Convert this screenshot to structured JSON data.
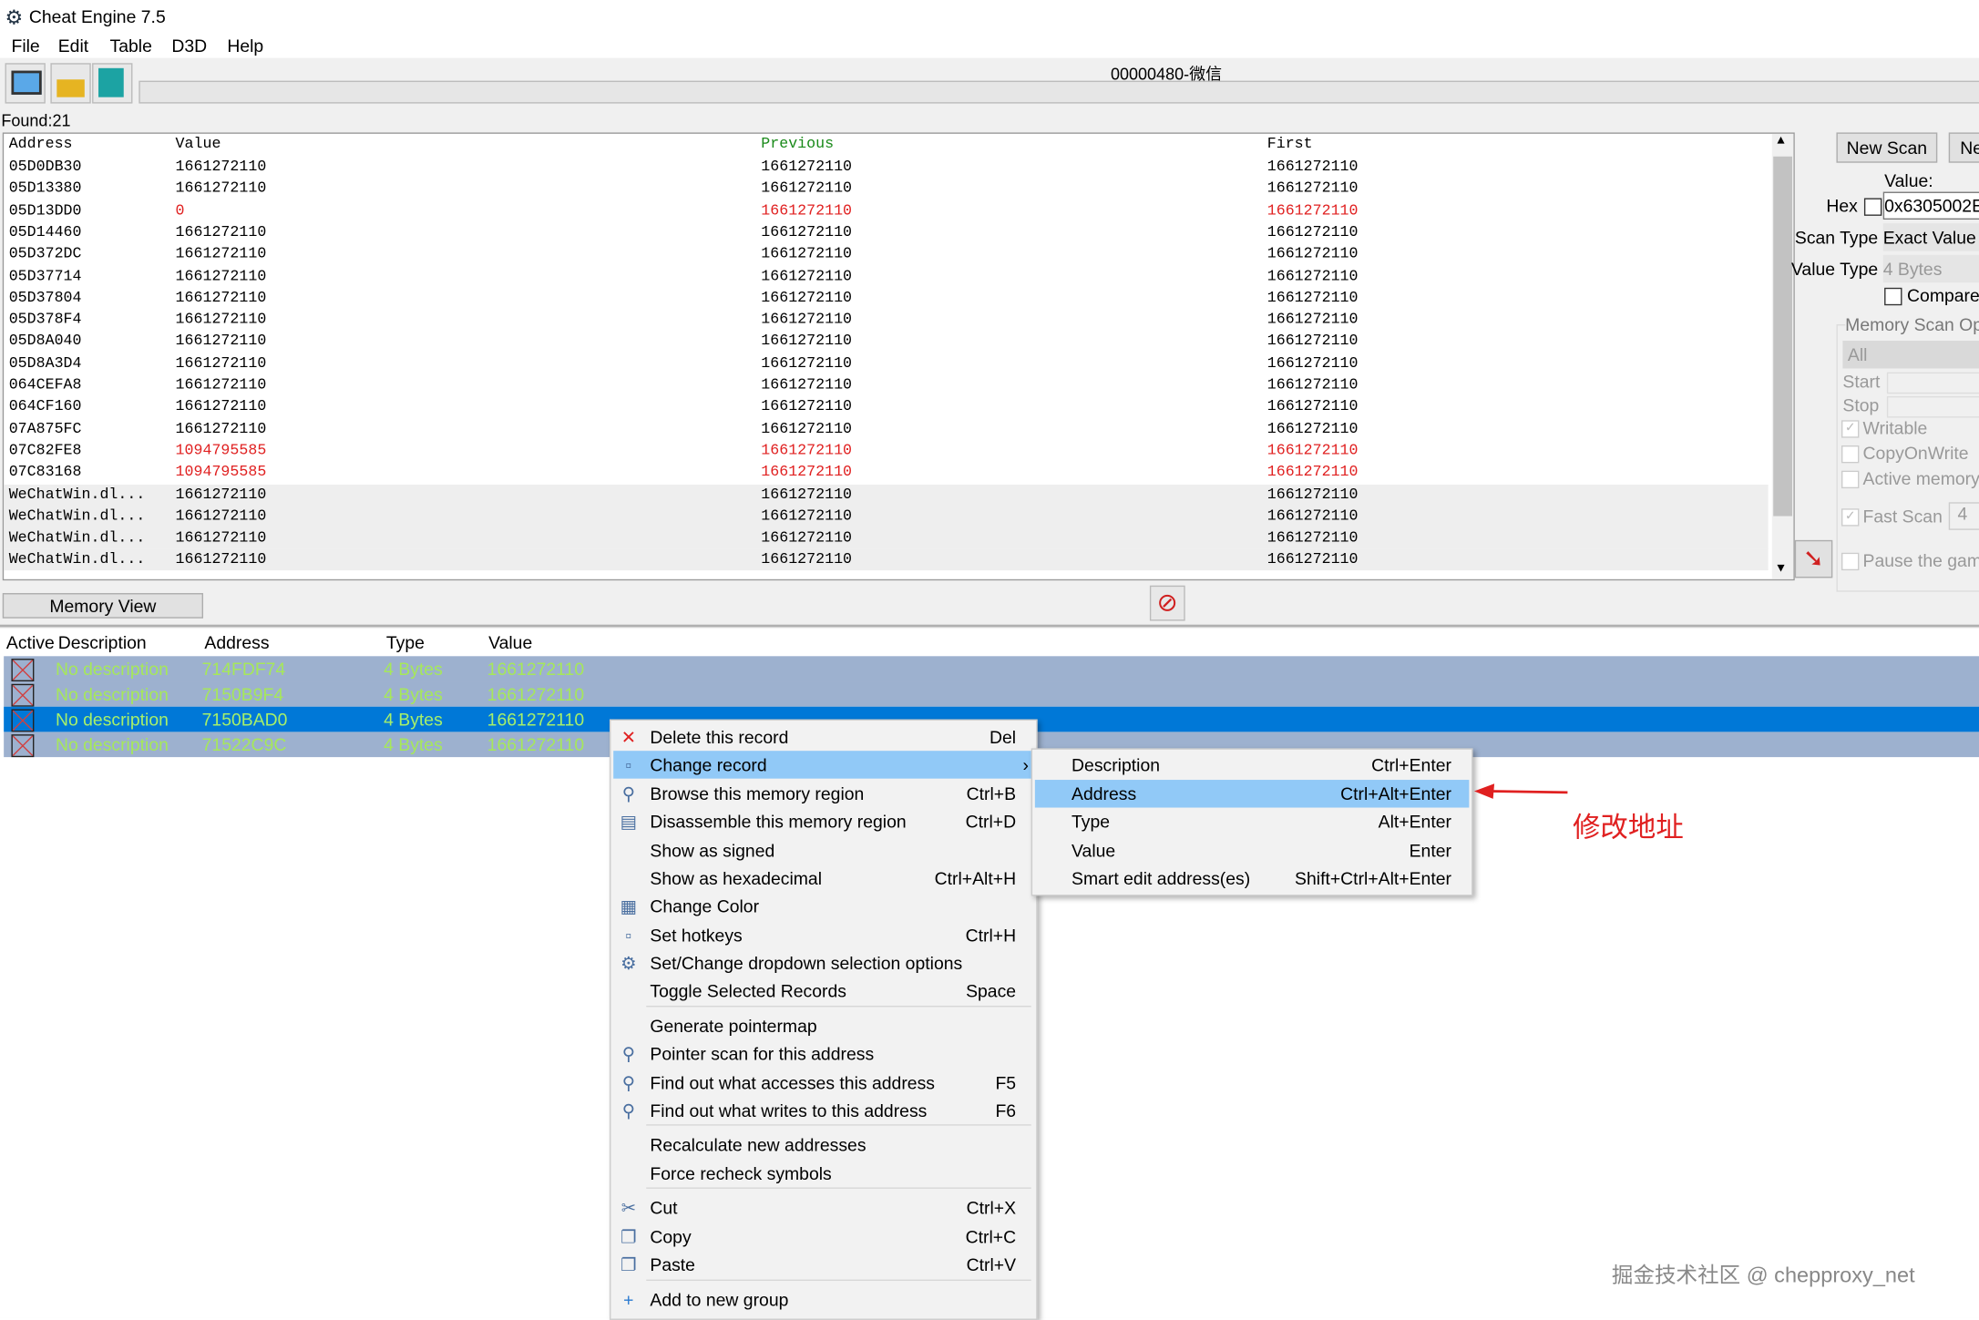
{
  "app": {
    "title": "Cheat Engine 7.5",
    "process": "00000480-微信"
  },
  "menubar": [
    "File",
    "Edit",
    "Table",
    "D3D",
    "Help"
  ],
  "toolbar": {
    "icons": [
      "open-process-icon",
      "open-file-icon",
      "save-icon"
    ]
  },
  "found": "Found:21",
  "results": {
    "headers": [
      "Address",
      "Value",
      "Previous",
      "First"
    ],
    "rows": [
      [
        "05D0DB30",
        "1661272110",
        "1661272110",
        "1661272110",
        false
      ],
      [
        "05D13380",
        "1661272110",
        "1661272110",
        "1661272110",
        false
      ],
      [
        "05D13DD0",
        "0",
        "1661272110",
        "1661272110",
        true
      ],
      [
        "05D14460",
        "1661272110",
        "1661272110",
        "1661272110",
        false
      ],
      [
        "05D372DC",
        "1661272110",
        "1661272110",
        "1661272110",
        false
      ],
      [
        "05D37714",
        "1661272110",
        "1661272110",
        "1661272110",
        false
      ],
      [
        "05D37804",
        "1661272110",
        "1661272110",
        "1661272110",
        false
      ],
      [
        "05D378F4",
        "1661272110",
        "1661272110",
        "1661272110",
        false
      ],
      [
        "05D8A040",
        "1661272110",
        "1661272110",
        "1661272110",
        false
      ],
      [
        "05D8A3D4",
        "1661272110",
        "1661272110",
        "1661272110",
        false
      ],
      [
        "064CEFA8",
        "1661272110",
        "1661272110",
        "1661272110",
        false
      ],
      [
        "064CF160",
        "1661272110",
        "1661272110",
        "1661272110",
        false
      ],
      [
        "07A875FC",
        "1661272110",
        "1661272110",
        "1661272110",
        false
      ],
      [
        "07C82FE8",
        "1094795585",
        "1661272110",
        "1661272110",
        true
      ],
      [
        "07C83168",
        "1094795585",
        "1661272110",
        "1661272110",
        true
      ],
      [
        "WeChatWin.dl...",
        "1661272110",
        "1661272110",
        "1661272110",
        false
      ],
      [
        "WeChatWin.dl...",
        "1661272110",
        "1661272110",
        "1661272110",
        false
      ],
      [
        "WeChatWin.dl...",
        "1661272110",
        "1661272110",
        "1661272110",
        false
      ],
      [
        "WeChatWin.dl...",
        "1661272110",
        "1661272110",
        "1661272110",
        false
      ]
    ]
  },
  "scan": {
    "new_scan": "New Scan",
    "next_scan": "Ne",
    "value_label": "Value:",
    "hex_label": "Hex",
    "value": "0x6305002E",
    "scan_type_label": "Scan Type",
    "scan_type": "Exact Value",
    "value_type_label": "Value Type",
    "value_type": "4 Bytes",
    "compare": "Compare",
    "mem_opts": "Memory Scan Op",
    "region": "All",
    "start": "Start",
    "stop": "Stop",
    "writable": "Writable",
    "cow": "CopyOnWrite",
    "active": "Active memory",
    "fast_scan": "Fast Scan",
    "fast_val": "4",
    "pause": "Pause the gam"
  },
  "memory_view": "Memory View",
  "addrlist": {
    "headers": [
      "Active",
      "Description",
      "Address",
      "Type",
      "Value"
    ],
    "rows": [
      [
        "No description",
        "714FDF74",
        "4 Bytes",
        "1661272110"
      ],
      [
        "No description",
        "7150B9F4",
        "4 Bytes",
        "1661272110"
      ],
      [
        "No description",
        "7150BAD0",
        "4 Bytes",
        "1661272110"
      ],
      [
        "No description",
        "71522C9C",
        "4 Bytes",
        "1661272110"
      ]
    ],
    "selected": 2
  },
  "context_menu": [
    {
      "label": "Delete this record",
      "shortcut": "Del",
      "icon": "✕"
    },
    {
      "label": "Change record",
      "shortcut": "",
      "icon": "▫",
      "submenu": true,
      "hl": true
    },
    {
      "label": "Browse this memory region",
      "shortcut": "Ctrl+B",
      "icon": "⚲"
    },
    {
      "label": "Disassemble this memory region",
      "shortcut": "Ctrl+D",
      "icon": "▤"
    },
    {
      "label": "Show as signed",
      "shortcut": ""
    },
    {
      "label": "Show as hexadecimal",
      "shortcut": "Ctrl+Alt+H"
    },
    {
      "label": "Change Color",
      "shortcut": "",
      "icon": "▦"
    },
    {
      "label": "Set hotkeys",
      "shortcut": "Ctrl+H",
      "icon": "▫"
    },
    {
      "label": "Set/Change dropdown selection options",
      "shortcut": "",
      "icon": "⚙"
    },
    {
      "label": "Toggle Selected Records",
      "shortcut": "Space"
    },
    {
      "label": "Generate pointermap",
      "shortcut": ""
    },
    {
      "label": "Pointer scan for this address",
      "shortcut": "",
      "icon": "⚲"
    },
    {
      "label": "Find out what accesses this address",
      "shortcut": "F5",
      "icon": "⚲"
    },
    {
      "label": "Find out what writes to this address",
      "shortcut": "F6",
      "icon": "⚲"
    },
    {
      "label": "Recalculate new addresses",
      "shortcut": ""
    },
    {
      "label": "Force recheck symbols",
      "shortcut": ""
    },
    {
      "label": "Cut",
      "shortcut": "Ctrl+X",
      "icon": "✂"
    },
    {
      "label": "Copy",
      "shortcut": "Ctrl+C",
      "icon": "❐"
    },
    {
      "label": "Paste",
      "shortcut": "Ctrl+V",
      "icon": "❐"
    },
    {
      "label": "Add to new group",
      "shortcut": "",
      "icon": "+"
    }
  ],
  "submenu": [
    {
      "label": "Description",
      "shortcut": "Ctrl+Enter"
    },
    {
      "label": "Address",
      "shortcut": "Ctrl+Alt+Enter",
      "hl": true
    },
    {
      "label": "Type",
      "shortcut": "Alt+Enter"
    },
    {
      "label": "Value",
      "shortcut": "Enter"
    },
    {
      "label": "Smart edit address(es)",
      "shortcut": "Shift+Ctrl+Alt+Enter"
    }
  ],
  "annotation": "修改地址",
  "watermark": "掘金技术社区 @ chepproxy_net",
  "colors": {
    "selection": "#0078d7",
    "menu_highlight": "#91c9f7",
    "changed": "#e02020",
    "annotation": "#e02020"
  }
}
